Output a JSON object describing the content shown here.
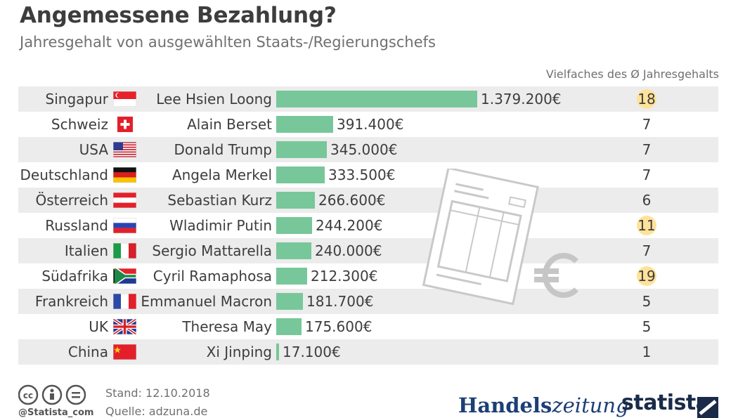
{
  "header": {
    "title": "Angemessene Bezahlung?",
    "subtitle": "Jahresgehalt von ausgewählten Staats-/Regierungschefs",
    "multiplier_label": "Vielfaches des Ø Jahresgehalts"
  },
  "chart_data": {
    "type": "bar",
    "orientation": "horizontal",
    "title": "Angemessene Bezahlung?",
    "subtitle": "Jahresgehalt von ausgewählten Staats-/Regierungschefs",
    "unit": "€",
    "bar_color": "#78c79a",
    "rows": [
      {
        "country": "Singapur",
        "leader": "Lee Hsien Loong",
        "value": 1379200,
        "value_label": "1.379.200€",
        "multiplier": "18",
        "highlight": true,
        "flag": "sg"
      },
      {
        "country": "Schweiz",
        "leader": "Alain Berset",
        "value": 391400,
        "value_label": "391.400€",
        "multiplier": "7",
        "highlight": false,
        "flag": "ch"
      },
      {
        "country": "USA",
        "leader": "Donald Trump",
        "value": 345000,
        "value_label": "345.000€",
        "multiplier": "7",
        "highlight": false,
        "flag": "us"
      },
      {
        "country": "Deutschland",
        "leader": "Angela Merkel",
        "value": 333500,
        "value_label": "333.500€",
        "multiplier": "7",
        "highlight": false,
        "flag": "de"
      },
      {
        "country": "Österreich",
        "leader": "Sebastian Kurz",
        "value": 266600,
        "value_label": "266.600€",
        "multiplier": "6",
        "highlight": false,
        "flag": "at"
      },
      {
        "country": "Russland",
        "leader": "Wladimir Putin",
        "value": 244200,
        "value_label": "244.200€",
        "multiplier": "11",
        "highlight": true,
        "flag": "ru"
      },
      {
        "country": "Italien",
        "leader": "Sergio Mattarella",
        "value": 240000,
        "value_label": "240.000€",
        "multiplier": "7",
        "highlight": false,
        "flag": "it"
      },
      {
        "country": "Südafrika",
        "leader": "Cyril Ramaphosa",
        "value": 212300,
        "value_label": "212.300€",
        "multiplier": "19",
        "highlight": true,
        "flag": "za"
      },
      {
        "country": "Frankreich",
        "leader": "Emmanuel Macron",
        "value": 181700,
        "value_label": "181.700€",
        "multiplier": "5",
        "highlight": false,
        "flag": "fr"
      },
      {
        "country": "UK",
        "leader": "Theresa May",
        "value": 175600,
        "value_label": "175.600€",
        "multiplier": "5",
        "highlight": false,
        "flag": "gb"
      },
      {
        "country": "China",
        "leader": "Xi Jinping",
        "value": 17100,
        "value_label": "17.100€",
        "multiplier": "1",
        "highlight": false,
        "flag": "cn"
      }
    ]
  },
  "footer": {
    "handle": "@Statista_com",
    "stand": "Stand: 12.10.2018",
    "quelle": "Quelle: adzuna.de",
    "hz_part1": "Handels",
    "hz_part2": "zeitung",
    "statista": "statista"
  }
}
